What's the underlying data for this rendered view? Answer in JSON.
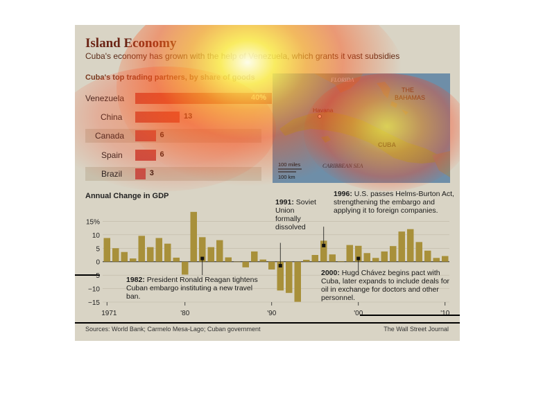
{
  "header": {
    "title": "Island Economy",
    "subtitle": "Cuba's economy has grown with the help of Venezuela, which grants it vast subsidies"
  },
  "trade": {
    "title": "Cuba's top trading partners, by share of goods",
    "partners": [
      {
        "name": "Venezuela",
        "value": 40,
        "label": "40%"
      },
      {
        "name": "China",
        "value": 13,
        "label": "13"
      },
      {
        "name": "Canada",
        "value": 6,
        "label": "6"
      },
      {
        "name": "Spain",
        "value": 6,
        "label": "6"
      },
      {
        "name": "Brazil",
        "value": 3,
        "label": "3"
      }
    ]
  },
  "map": {
    "florida": "FLORIDA",
    "bahamas_1": "THE",
    "bahamas_2": "BAHAMAS",
    "havana": "Havana",
    "cuba": "CUBA",
    "sea": "CARIBBEAN SEA",
    "scale_miles": "100 miles",
    "scale_km": "100 km",
    "colors": {
      "sea": "#6e8ea8",
      "land": "#8a8a7a",
      "cuba": "#7a9a6a"
    }
  },
  "chart_data": {
    "type": "bar",
    "title": "Annual Change in GDP",
    "x": [
      1971,
      1972,
      1973,
      1974,
      1975,
      1976,
      1977,
      1978,
      1979,
      1980,
      1981,
      1982,
      1983,
      1984,
      1985,
      1986,
      1987,
      1988,
      1989,
      1990,
      1991,
      1992,
      1993,
      1994,
      1995,
      1996,
      1997,
      1998,
      1999,
      2000,
      2001,
      2002,
      2003,
      2004,
      2005,
      2006,
      2007,
      2008,
      2009,
      2010
    ],
    "values": [
      8.8,
      5.0,
      3.6,
      1.2,
      9.6,
      5.4,
      8.8,
      6.7,
      1.5,
      -4.8,
      18.5,
      9.1,
      5.4,
      8.0,
      1.6,
      0.0,
      -2.1,
      3.8,
      0.8,
      -2.9,
      -10.7,
      -11.6,
      -14.9,
      0.7,
      2.5,
      7.8,
      2.7,
      0.2,
      6.2,
      5.9,
      3.2,
      1.4,
      3.8,
      5.8,
      11.2,
      12.1,
      7.3,
      4.1,
      1.4,
      2.1
    ],
    "ylim": [
      -15,
      20
    ],
    "yticks": [
      "15%",
      "10",
      "5",
      "0",
      "−5",
      "−10",
      "−15"
    ],
    "xticks": [
      "1971",
      "'80",
      "'90",
      "'00",
      "'10"
    ],
    "bar_color": "#a8903a",
    "annotations": [
      {
        "year": 1982,
        "value": 1.2,
        "text_bold": "1982:",
        "text": "President Ronald Reagan tightens Cuban embargo instituting a new travel ban."
      },
      {
        "year": 1991,
        "value": -1.5,
        "text_bold": "1991:",
        "text": "Soviet Union formally dissolved"
      },
      {
        "year": 1996,
        "value": 6.0,
        "text_bold": "1996:",
        "text": "U.S. passes Helms-Burton Act, strengthening the embargo and applying it to foreign companies."
      },
      {
        "year": 2000,
        "value": 1.2,
        "text_bold": "2000:",
        "text": "Hugo Chávez begins pact with Cuba, later expands to include deals for oil in exchange for doctors and other personnel."
      }
    ]
  },
  "footer": {
    "sources": "Sources: World Bank; Carmelo Mesa-Lago; Cuban government",
    "credit": "The Wall Street Journal"
  }
}
